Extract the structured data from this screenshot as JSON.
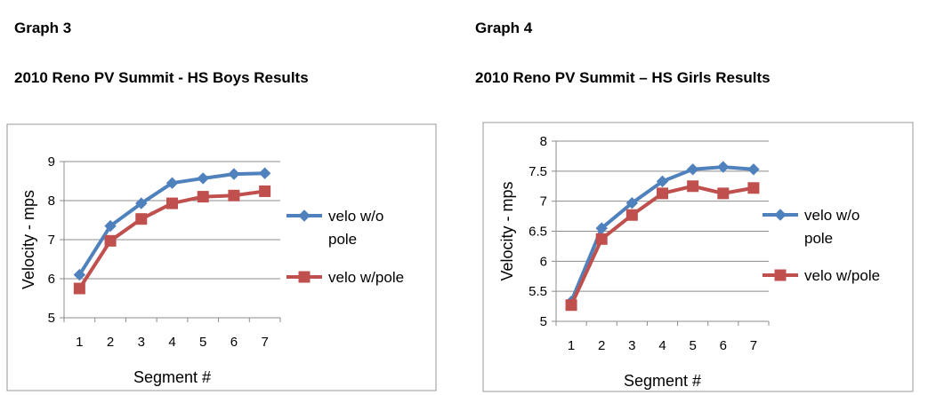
{
  "charts": [
    {
      "graph_label": "Graph 3",
      "title": "2010 Reno PV Summit - HS Boys Results"
    },
    {
      "graph_label": "Graph 4",
      "title": "2010 Reno PV Summit – HS Girls Results"
    }
  ],
  "chart_data": [
    {
      "type": "line",
      "categories": [
        1,
        2,
        3,
        4,
        5,
        6,
        7
      ],
      "xlabel": "Segment #",
      "ylabel": "Velocity - mps",
      "ylim": [
        5,
        9
      ],
      "yticks": [
        5,
        6,
        7,
        8,
        9
      ],
      "grid": true,
      "legend_position": "right",
      "series": [
        {
          "name": "velo w/o pole",
          "legend_lines": [
            "velo w/o",
            "pole"
          ],
          "color": "#4F81BD",
          "marker": "diamond",
          "values": [
            6.1,
            7.35,
            7.93,
            8.45,
            8.57,
            8.68,
            8.7
          ]
        },
        {
          "name": "velo w/pole",
          "legend_lines": [
            "velo w/pole"
          ],
          "color": "#C0504D",
          "marker": "square",
          "values": [
            5.75,
            6.97,
            7.53,
            7.93,
            8.1,
            8.13,
            8.24
          ]
        }
      ]
    },
    {
      "type": "line",
      "categories": [
        1,
        2,
        3,
        4,
        5,
        6,
        7
      ],
      "xlabel": "Segment #",
      "ylabel": "Velocity - mps",
      "ylim": [
        5,
        8
      ],
      "yticks": [
        5,
        5.5,
        6,
        6.5,
        7,
        7.5,
        8
      ],
      "grid": true,
      "legend_position": "right",
      "series": [
        {
          "name": "velo w/o pole",
          "legend_lines": [
            "velo w/o",
            "pole"
          ],
          "color": "#4F81BD",
          "marker": "diamond",
          "values": [
            5.33,
            6.55,
            6.97,
            7.33,
            7.53,
            7.57,
            7.53
          ]
        },
        {
          "name": "velo w/pole",
          "legend_lines": [
            "velo w/pole"
          ],
          "color": "#C0504D",
          "marker": "square",
          "values": [
            5.27,
            6.37,
            6.77,
            7.13,
            7.25,
            7.13,
            7.22
          ]
        }
      ]
    }
  ]
}
